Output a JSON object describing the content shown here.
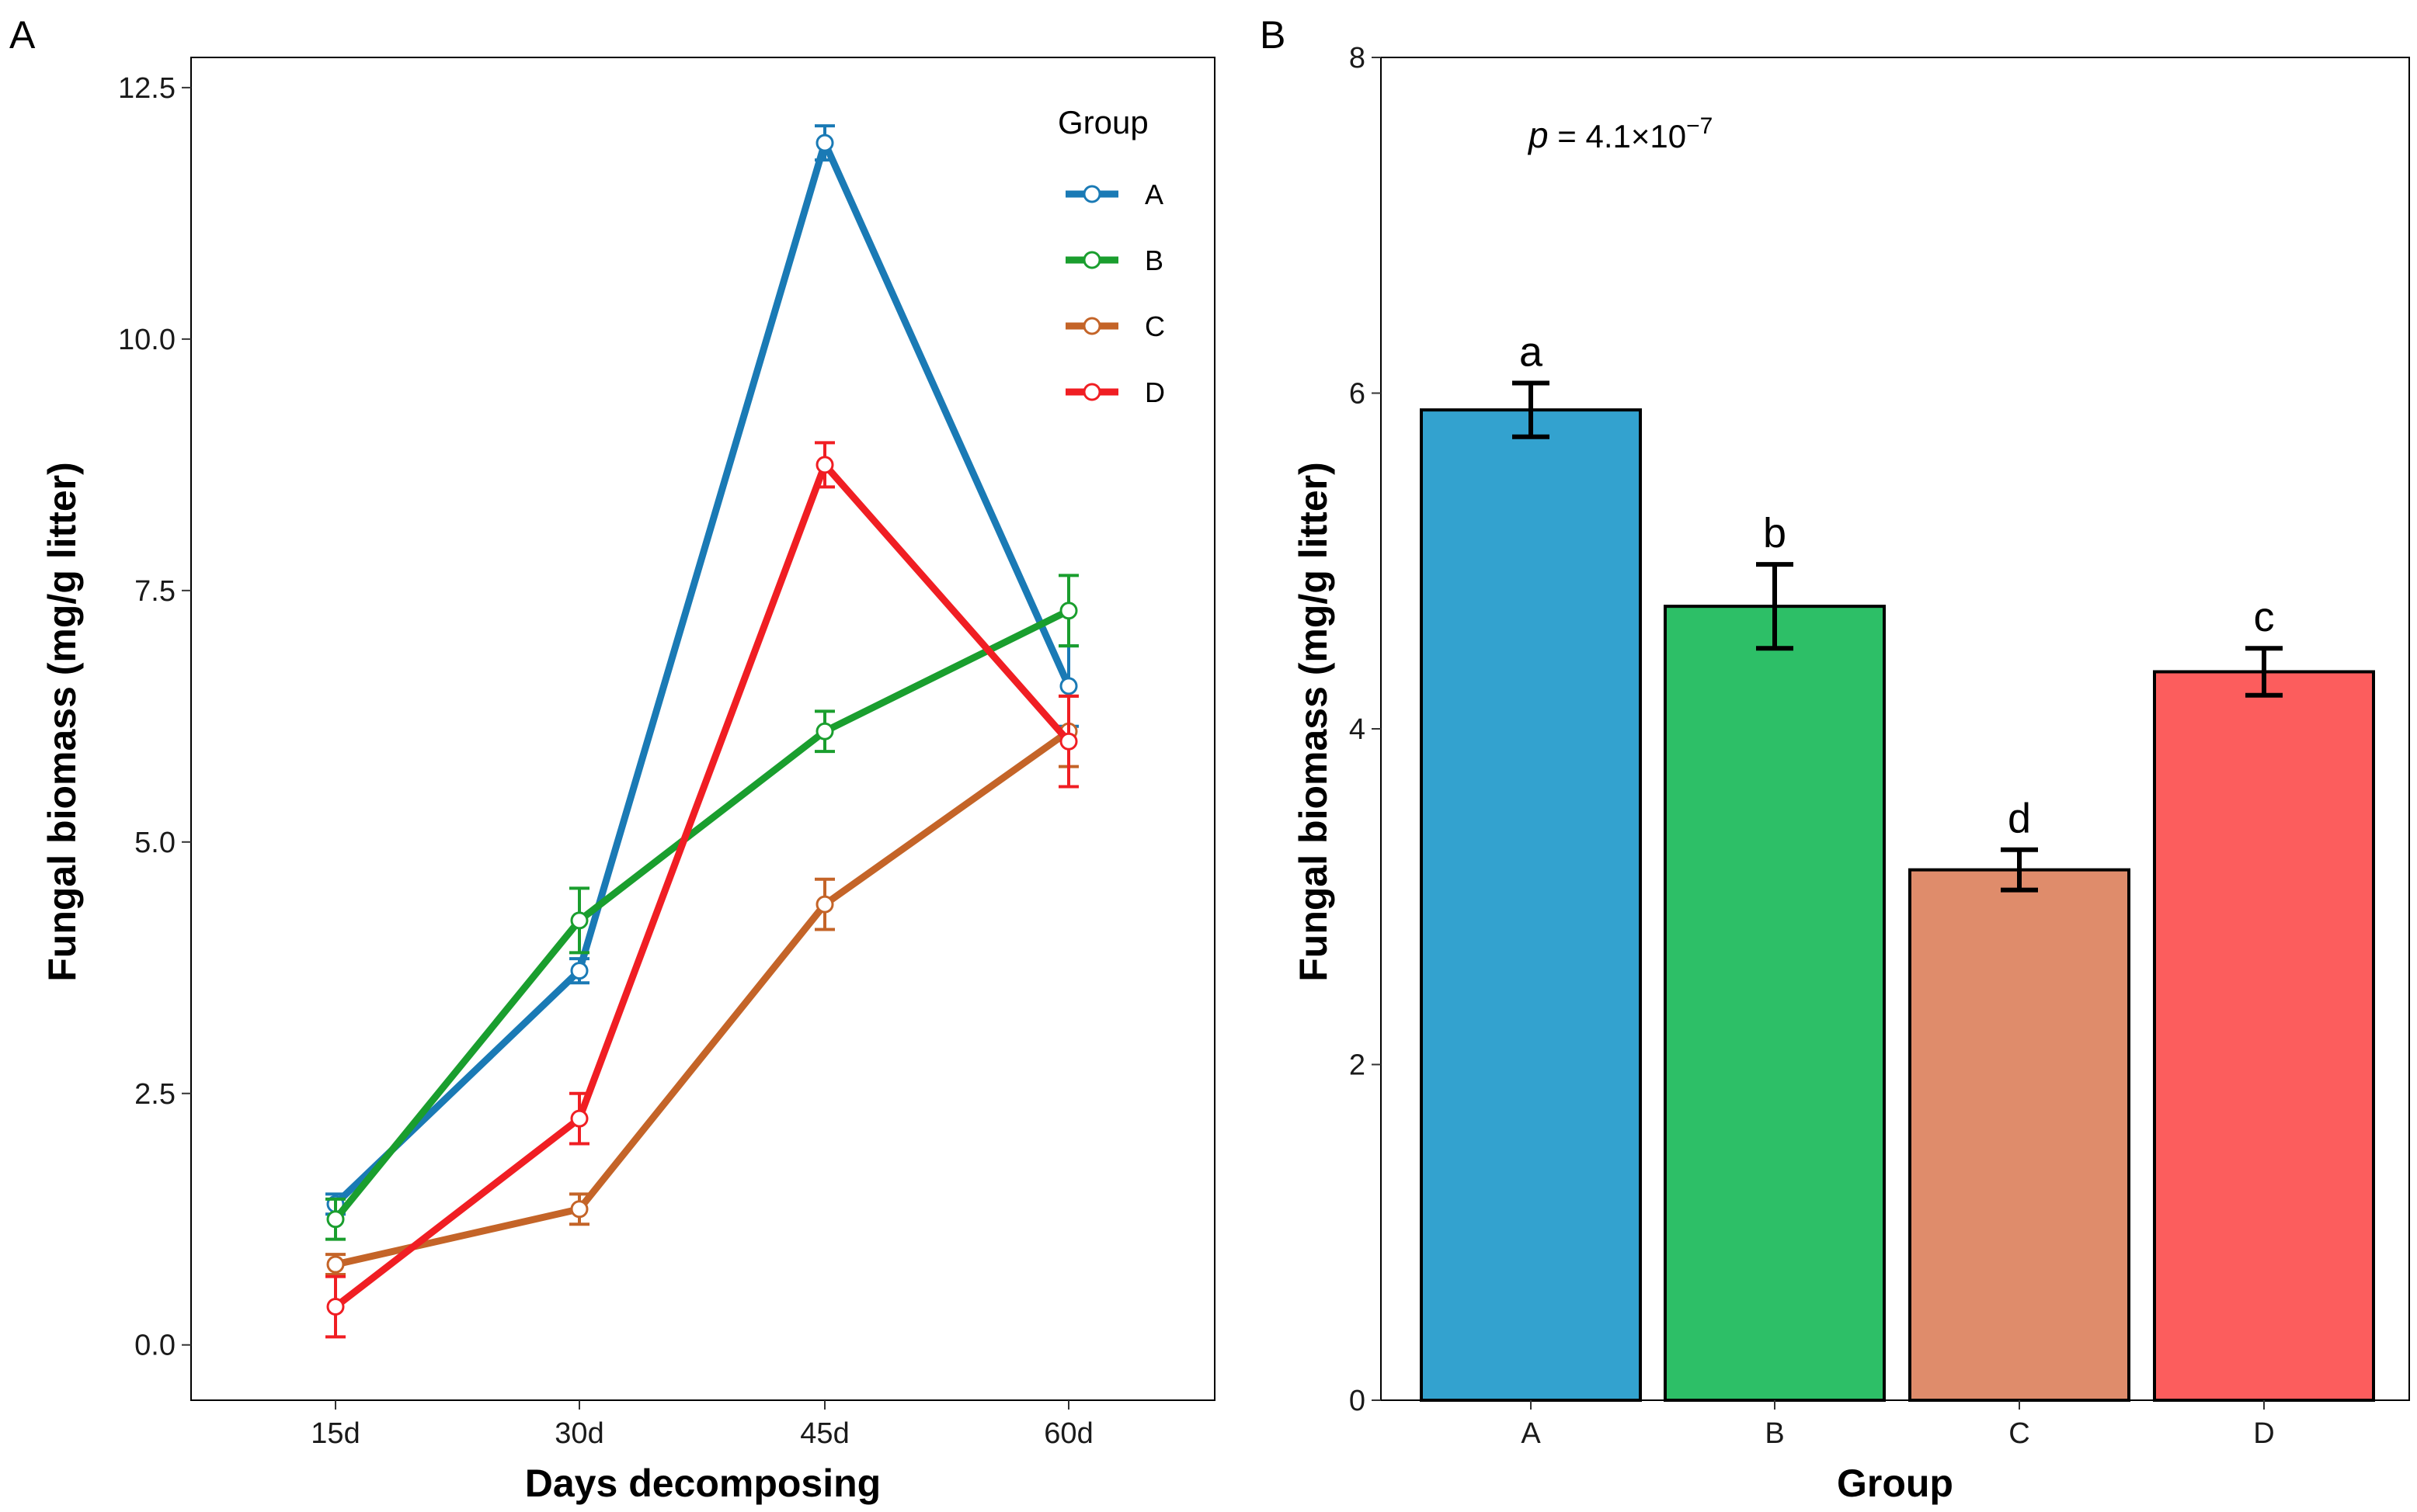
{
  "panels": {
    "a_label": "A",
    "b_label": "B"
  },
  "legend": {
    "title": "Group"
  },
  "pvalue": {
    "symbol": "p",
    "text": " = 4.1×10",
    "exponent": "−7"
  },
  "colors": {
    "A": "#1a7ab5",
    "B": "#1a9e2e",
    "C": "#c46428",
    "D": "#f01e23",
    "bar_A": "#33a2cf",
    "bar_B": "#2dbf67",
    "bar_C": "#df8c6b",
    "bar_D": "#fc5d5d"
  },
  "chart_data": [
    {
      "type": "line",
      "panel": "A",
      "xlabel": "Days decomposing",
      "ylabel": "Fungal biomass (mg/g litter)",
      "categories": [
        "15d",
        "30d",
        "45d",
        "60d"
      ],
      "ylim": [
        -0.55,
        12.8
      ],
      "yticks": [
        "0.0",
        "2.5",
        "5.0",
        "7.5",
        "10.0",
        "12.5"
      ],
      "ytick_values": [
        0,
        2.5,
        5.0,
        7.5,
        10.0,
        12.5
      ],
      "legend_position": "top-right",
      "series": [
        {
          "name": "A",
          "values": [
            1.4,
            3.72,
            11.95,
            6.55
          ],
          "errors": [
            0.1,
            0.12,
            0.17,
            0.4
          ]
        },
        {
          "name": "B",
          "values": [
            1.25,
            4.22,
            6.1,
            7.3
          ],
          "errors": [
            0.2,
            0.32,
            0.2,
            0.35
          ]
        },
        {
          "name": "C",
          "values": [
            0.8,
            1.35,
            4.38,
            6.1
          ],
          "errors": [
            0.1,
            0.15,
            0.25,
            0.35
          ]
        },
        {
          "name": "D",
          "values": [
            0.38,
            2.25,
            8.75,
            6.0
          ],
          "errors": [
            0.3,
            0.25,
            0.22,
            0.45
          ]
        }
      ]
    },
    {
      "type": "bar",
      "panel": "B",
      "xlabel": "Group",
      "ylabel": "Fungal biomass (mg/g litter)",
      "categories": [
        "A",
        "B",
        "C",
        "D"
      ],
      "values": [
        5.9,
        4.73,
        3.16,
        4.34
      ],
      "errors": [
        0.16,
        0.25,
        0.12,
        0.14
      ],
      "letters": [
        "a",
        "b",
        "d",
        "c"
      ],
      "ylim": [
        0,
        8
      ],
      "yticks": [
        "0",
        "2",
        "4",
        "6",
        "8"
      ],
      "ytick_values": [
        0,
        2,
        4,
        6,
        8
      ]
    }
  ]
}
